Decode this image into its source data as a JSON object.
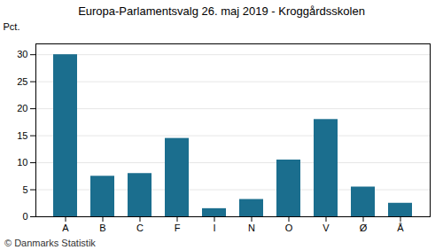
{
  "chart_data": {
    "type": "bar",
    "title": "Europa-Parlamentsvalg 26. maj 2019 - Kroggårdsskolen",
    "ylabel": "Pct.",
    "annotations": [
      "© Danmarks Statistik"
    ],
    "categories": [
      "A",
      "B",
      "C",
      "F",
      "I",
      "N",
      "O",
      "V",
      "Ø",
      "Å"
    ],
    "values": [
      30.0,
      7.5,
      8.0,
      14.5,
      1.5,
      3.2,
      10.5,
      18.0,
      5.5,
      2.5
    ],
    "color": "#1b6e8e",
    "ylim": [
      0,
      32
    ],
    "yticks": [
      0,
      5,
      10,
      15,
      20,
      25,
      30
    ],
    "grid": true
  }
}
